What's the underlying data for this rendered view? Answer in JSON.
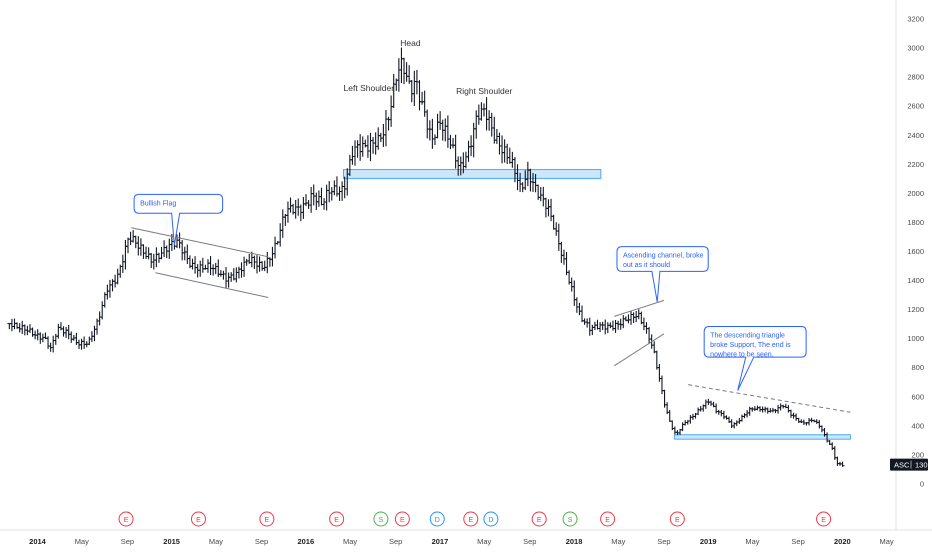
{
  "chart_data": {
    "type": "ohlc",
    "symbol": "ASC",
    "last_price_label": "130",
    "y_ticks": [
      0,
      200,
      400,
      600,
      800,
      1000,
      1200,
      1400,
      1600,
      1800,
      2000,
      2200,
      2400,
      2600,
      2800,
      3000,
      3200
    ],
    "ylim": [
      -100,
      3300
    ],
    "x_range": [
      2013.78,
      2020.4
    ],
    "x_ticks": [
      {
        "label": "2014",
        "x": 2014.0,
        "bold": true
      },
      {
        "label": "May",
        "x": 2014.33
      },
      {
        "label": "Sep",
        "x": 2014.67
      },
      {
        "label": "2015",
        "x": 2015.0,
        "bold": true
      },
      {
        "label": "May",
        "x": 2015.33
      },
      {
        "label": "Sep",
        "x": 2015.67
      },
      {
        "label": "2016",
        "x": 2016.0,
        "bold": true
      },
      {
        "label": "May",
        "x": 2016.33
      },
      {
        "label": "Sep",
        "x": 2016.67
      },
      {
        "label": "2017",
        "x": 2017.0,
        "bold": true
      },
      {
        "label": "May",
        "x": 2017.33
      },
      {
        "label": "Sep",
        "x": 2017.67
      },
      {
        "label": "2018",
        "x": 2018.0,
        "bold": true
      },
      {
        "label": "May",
        "x": 2018.33
      },
      {
        "label": "Sep",
        "x": 2018.67
      },
      {
        "label": "2019",
        "x": 2019.0,
        "bold": true
      },
      {
        "label": "May",
        "x": 2019.33
      },
      {
        "label": "Sep",
        "x": 2019.67
      },
      {
        "label": "2020",
        "x": 2020.0,
        "bold": true
      },
      {
        "label": "May",
        "x": 2020.33
      }
    ],
    "price_path": [
      [
        2013.79,
        1100
      ],
      [
        2013.85,
        1060
      ],
      [
        2013.95,
        1050
      ],
      [
        2014.05,
        1010
      ],
      [
        2014.1,
        920
      ],
      [
        2014.15,
        1050
      ],
      [
        2014.22,
        1040
      ],
      [
        2014.3,
        980
      ],
      [
        2014.38,
        960
      ],
      [
        2014.45,
        1100
      ],
      [
        2014.52,
        1350
      ],
      [
        2014.6,
        1450
      ],
      [
        2014.68,
        1680
      ],
      [
        2014.75,
        1620
      ],
      [
        2014.85,
        1560
      ],
      [
        2014.95,
        1600
      ],
      [
        2015.05,
        1650
      ],
      [
        2015.15,
        1520
      ],
      [
        2015.22,
        1480
      ],
      [
        2015.3,
        1470
      ],
      [
        2015.4,
        1430
      ],
      [
        2015.48,
        1450
      ],
      [
        2015.58,
        1520
      ],
      [
        2015.68,
        1500
      ],
      [
        2015.78,
        1650
      ],
      [
        2015.85,
        1850
      ],
      [
        2015.95,
        1900
      ],
      [
        2016.05,
        2000
      ],
      [
        2016.12,
        1900
      ],
      [
        2016.18,
        2000
      ],
      [
        2016.28,
        2050
      ],
      [
        2016.35,
        2300
      ],
      [
        2016.45,
        2280
      ],
      [
        2016.55,
        2400
      ],
      [
        2016.62,
        2550
      ],
      [
        2016.68,
        2800
      ],
      [
        2016.72,
        2850
      ],
      [
        2016.78,
        2700
      ],
      [
        2016.82,
        2800
      ],
      [
        2016.88,
        2600
      ],
      [
        2016.94,
        2350
      ],
      [
        2017.0,
        2450
      ],
      [
        2017.08,
        2350
      ],
      [
        2017.15,
        2200
      ],
      [
        2017.22,
        2300
      ],
      [
        2017.28,
        2500
      ],
      [
        2017.34,
        2550
      ],
      [
        2017.42,
        2400
      ],
      [
        2017.48,
        2300
      ],
      [
        2017.55,
        2150
      ],
      [
        2017.6,
        2000
      ],
      [
        2017.66,
        2150
      ],
      [
        2017.72,
        2050
      ],
      [
        2017.8,
        1900
      ],
      [
        2017.88,
        1650
      ],
      [
        2017.95,
        1450
      ],
      [
        2018.0,
        1300
      ],
      [
        2018.05,
        1150
      ],
      [
        2018.12,
        1050
      ],
      [
        2018.2,
        1080
      ],
      [
        2018.3,
        1100
      ],
      [
        2018.4,
        1120
      ],
      [
        2018.48,
        1150
      ],
      [
        2018.55,
        1050
      ],
      [
        2018.6,
        900
      ],
      [
        2018.64,
        700
      ],
      [
        2018.68,
        520
      ],
      [
        2018.72,
        400
      ],
      [
        2018.76,
        330
      ],
      [
        2018.82,
        420
      ],
      [
        2018.9,
        480
      ],
      [
        2019.0,
        560
      ],
      [
        2019.06,
        500
      ],
      [
        2019.12,
        470
      ],
      [
        2019.18,
        400
      ],
      [
        2019.24,
        440
      ],
      [
        2019.32,
        510
      ],
      [
        2019.4,
        520
      ],
      [
        2019.48,
        500
      ],
      [
        2019.56,
        530
      ],
      [
        2019.62,
        470
      ],
      [
        2019.7,
        420
      ],
      [
        2019.78,
        440
      ],
      [
        2019.84,
        380
      ],
      [
        2019.88,
        300
      ],
      [
        2019.92,
        250
      ],
      [
        2019.96,
        140
      ],
      [
        2020.02,
        130
      ]
    ],
    "support_zones": [
      {
        "x0": 2016.28,
        "x1": 2018.2,
        "y0": 2100,
        "y1": 2160
      },
      {
        "x0": 2018.75,
        "x1": 2020.06,
        "y0": 305,
        "y1": 335
      }
    ],
    "trendlines": [
      {
        "x0": 2014.7,
        "y0": 1760,
        "x1": 2015.72,
        "y1": 1560
      },
      {
        "x0": 2014.88,
        "y0": 1450,
        "x1": 2015.72,
        "y1": 1280
      },
      {
        "x0": 2018.3,
        "y0": 1150,
        "x1": 2018.67,
        "y1": 1260
      },
      {
        "x0": 2018.3,
        "y0": 810,
        "x1": 2018.67,
        "y1": 1030
      },
      {
        "x0": 2018.85,
        "y0": 680,
        "x1": 2020.06,
        "y1": 490,
        "dashed": true
      }
    ],
    "annotations": [
      {
        "text": "Head",
        "x": 2016.78,
        "y": 3010
      },
      {
        "text": "Left Shoulder",
        "x": 2016.47,
        "y": 2700
      },
      {
        "text": "Right Shoulder",
        "x": 2017.33,
        "y": 2680
      }
    ],
    "callouts": [
      {
        "lines": [
          "Bullish Flag"
        ],
        "bx0": 2014.72,
        "bx1": 2015.38,
        "by_top": 1990,
        "by_bot": 1860,
        "tail": [
          2015.0,
          1860,
          2015.06,
          1860,
          2015.02,
          1640
        ]
      },
      {
        "lines": [
          "Ascending channel, broke",
          "out as it should"
        ],
        "bx0": 2018.32,
        "bx1": 2019.0,
        "by_top": 1630,
        "by_bot": 1460,
        "tail": [
          2018.58,
          1460,
          2018.64,
          1460,
          2018.62,
          1250
        ]
      },
      {
        "lines": [
          "The descending triangle",
          "broke Support, The end is",
          "nowhere to be seen."
        ],
        "bx0": 2018.97,
        "bx1": 2019.73,
        "by_top": 1080,
        "by_bot": 870,
        "tail": [
          2019.28,
          870,
          2019.34,
          870,
          2019.22,
          640
        ]
      }
    ],
    "event_markers": [
      {
        "label": "E",
        "x": 2014.66,
        "type": "earnings"
      },
      {
        "label": "E",
        "x": 2015.2,
        "type": "earnings"
      },
      {
        "label": "E",
        "x": 2015.71,
        "type": "earnings"
      },
      {
        "label": "E",
        "x": 2016.23,
        "type": "earnings"
      },
      {
        "label": "S",
        "x": 2016.56,
        "type": "split"
      },
      {
        "label": "E",
        "x": 2016.72,
        "type": "earnings"
      },
      {
        "label": "D",
        "x": 2016.98,
        "type": "dividend"
      },
      {
        "label": "E",
        "x": 2017.23,
        "type": "earnings"
      },
      {
        "label": "D",
        "x": 2017.38,
        "type": "dividend"
      },
      {
        "label": "E",
        "x": 2017.74,
        "type": "earnings"
      },
      {
        "label": "S",
        "x": 2017.97,
        "type": "split"
      },
      {
        "label": "E",
        "x": 2018.25,
        "type": "earnings"
      },
      {
        "label": "E",
        "x": 2018.77,
        "type": "earnings"
      },
      {
        "label": "E",
        "x": 2019.86,
        "type": "earnings"
      }
    ],
    "colors": {
      "bar": "#131722",
      "support_fill": "#bbdefb",
      "support_stroke": "#2196f3",
      "trendline": "#787b86",
      "callout_border": "#2962ff",
      "callout_text": "#2962ff",
      "earnings": "#f23645",
      "split": "#4caf50",
      "dividend": "#2196f3",
      "axis_text": "#4a4a4a",
      "price_label_bg": "#131722"
    }
  }
}
